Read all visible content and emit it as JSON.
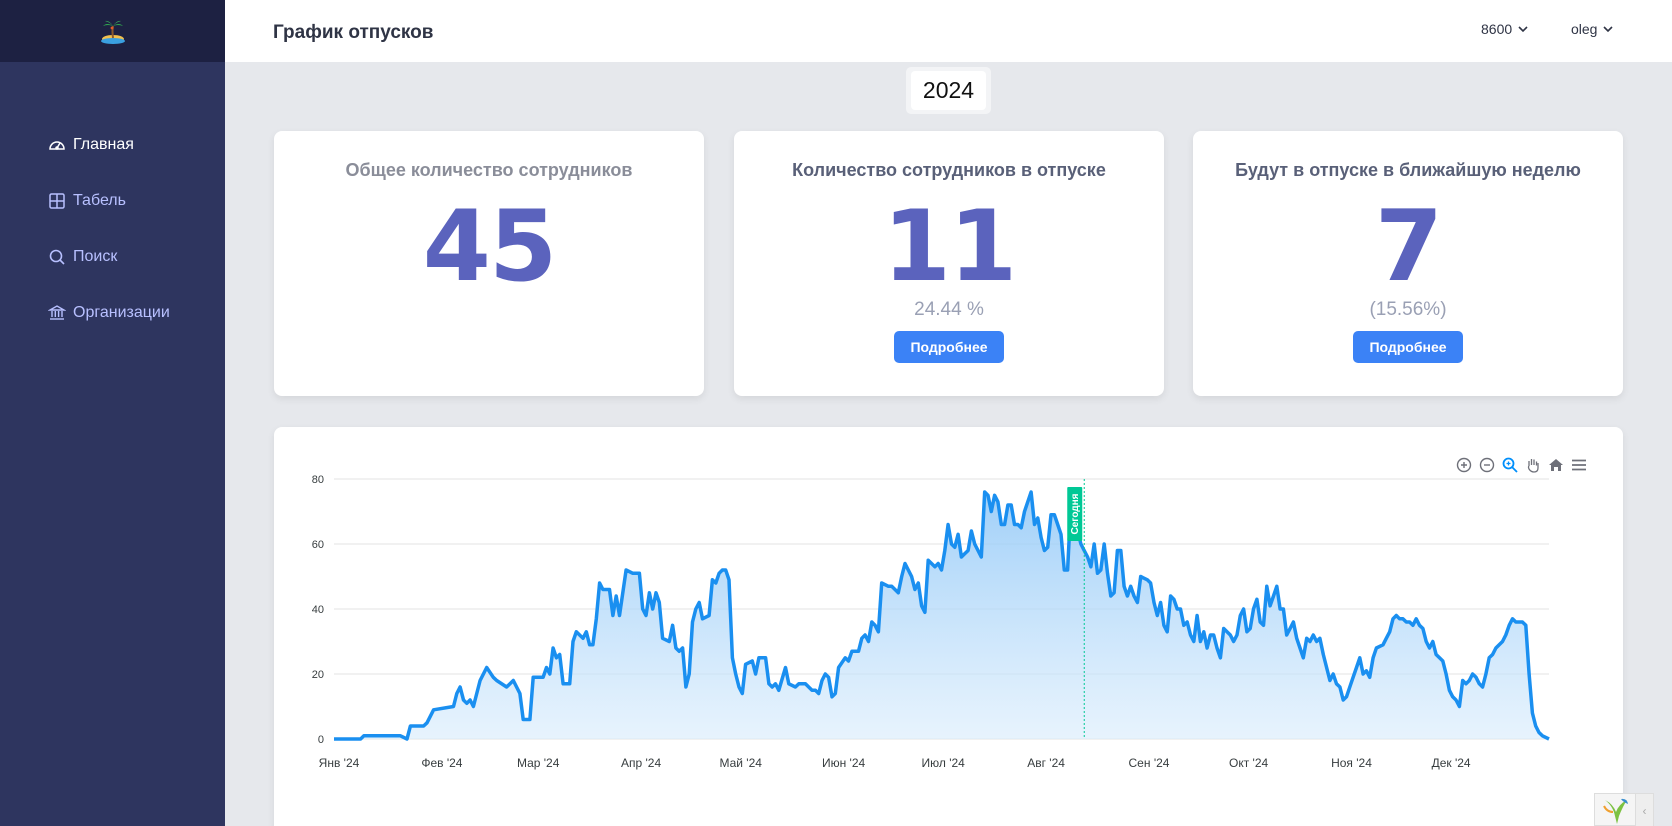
{
  "app": {
    "title": "График отпусков"
  },
  "sidebar": {
    "logo_icon": "palm-island-icon",
    "items": [
      {
        "label": "Главная",
        "icon": "dashboard-gauge-icon",
        "active": true
      },
      {
        "label": "Табель",
        "icon": "table-grid-icon",
        "active": false
      },
      {
        "label": "Поиск",
        "icon": "search-icon",
        "active": false
      },
      {
        "label": "Организации",
        "icon": "bank-building-icon",
        "active": false
      }
    ]
  },
  "header": {
    "org": "8600",
    "user": "oleg"
  },
  "year": "2024",
  "cards": [
    {
      "title": "Общее количество сотрудников",
      "value": "45"
    },
    {
      "title": "Количество сотрудников в отпуске",
      "value": "11",
      "sub": "24.44 %",
      "button": "Подробнее"
    },
    {
      "title": "Будут в отпуске в ближайшую неделю",
      "value": "7",
      "sub": "(15.56%)",
      "button": "Подробнее"
    }
  ],
  "chart_data": {
    "type": "area",
    "color": "#1a8ff0",
    "x_tick_labels": [
      "Янв '24",
      "Фев '24",
      "Мар '24",
      "Апр '24",
      "Май '24",
      "Июн '24",
      "Июл '24",
      "Авг '24",
      "Сен '24",
      "Окт '24",
      "Ноя '24",
      "Дек '24"
    ],
    "y_ticks": [
      0,
      20,
      40,
      60,
      80
    ],
    "ylim": [
      0,
      80
    ],
    "xlim_days": [
      0,
      366
    ],
    "annotation": {
      "label": "Сегодня",
      "day": 226,
      "color": "#00c896"
    },
    "points": [
      [
        0,
        0
      ],
      [
        8,
        0
      ],
      [
        9,
        1
      ],
      [
        20,
        1
      ],
      [
        22,
        0
      ],
      [
        23,
        4
      ],
      [
        27,
        4
      ],
      [
        28,
        5
      ],
      [
        30,
        9
      ],
      [
        36,
        10
      ],
      [
        37,
        14
      ],
      [
        38,
        16
      ],
      [
        39,
        12
      ],
      [
        40,
        11
      ],
      [
        41,
        12
      ],
      [
        42,
        10
      ],
      [
        44,
        18
      ],
      [
        46,
        22
      ],
      [
        48,
        19
      ],
      [
        49,
        18
      ],
      [
        52,
        16
      ],
      [
        54,
        18
      ],
      [
        56,
        14
      ],
      [
        57,
        6
      ],
      [
        59,
        6
      ],
      [
        60,
        19
      ],
      [
        63,
        19
      ],
      [
        64,
        22
      ],
      [
        65,
        20
      ],
      [
        66,
        28
      ],
      [
        67,
        25
      ],
      [
        68,
        26
      ],
      [
        69,
        17
      ],
      [
        71,
        17
      ],
      [
        72,
        30
      ],
      [
        73,
        33
      ],
      [
        75,
        31
      ],
      [
        76,
        33
      ],
      [
        77,
        29
      ],
      [
        78,
        29
      ],
      [
        79,
        37
      ],
      [
        80,
        48
      ],
      [
        81,
        46
      ],
      [
        83,
        46
      ],
      [
        84,
        38
      ],
      [
        85,
        44
      ],
      [
        86,
        38
      ],
      [
        88,
        52
      ],
      [
        90,
        51
      ],
      [
        92,
        51
      ],
      [
        93,
        40
      ],
      [
        94,
        38
      ],
      [
        95,
        45
      ],
      [
        96,
        40
      ],
      [
        97,
        45
      ],
      [
        98,
        42
      ],
      [
        99,
        31
      ],
      [
        101,
        30
      ],
      [
        102,
        35
      ],
      [
        103,
        28
      ],
      [
        104,
        27
      ],
      [
        105,
        28
      ],
      [
        106,
        16
      ],
      [
        107,
        20
      ],
      [
        108,
        36
      ],
      [
        109,
        40
      ],
      [
        110,
        42
      ],
      [
        111,
        37
      ],
      [
        113,
        38
      ],
      [
        114,
        49
      ],
      [
        115,
        48
      ],
      [
        116,
        51
      ],
      [
        117,
        52
      ],
      [
        118,
        52
      ],
      [
        119,
        49
      ],
      [
        120,
        25
      ],
      [
        121,
        20
      ],
      [
        122,
        16
      ],
      [
        123,
        14
      ],
      [
        124,
        23
      ],
      [
        126,
        24
      ],
      [
        127,
        20
      ],
      [
        128,
        25
      ],
      [
        130,
        25
      ],
      [
        131,
        17
      ],
      [
        132,
        16
      ],
      [
        133,
        17
      ],
      [
        134,
        15
      ],
      [
        136,
        22
      ],
      [
        137,
        17
      ],
      [
        139,
        16
      ],
      [
        140,
        17
      ],
      [
        142,
        17
      ],
      [
        144,
        15
      ],
      [
        145,
        15
      ],
      [
        146,
        14
      ],
      [
        147,
        18
      ],
      [
        148,
        20
      ],
      [
        149,
        19
      ],
      [
        150,
        13
      ],
      [
        151,
        14
      ],
      [
        152,
        22
      ],
      [
        154,
        25
      ],
      [
        155,
        24
      ],
      [
        156,
        27
      ],
      [
        158,
        27
      ],
      [
        159,
        31
      ],
      [
        160,
        32
      ],
      [
        161,
        30
      ],
      [
        162,
        36
      ],
      [
        163,
        35
      ],
      [
        164,
        33
      ],
      [
        165,
        48
      ],
      [
        167,
        47
      ],
      [
        168,
        47
      ],
      [
        169,
        46
      ],
      [
        170,
        45
      ],
      [
        171,
        50
      ],
      [
        172,
        54
      ],
      [
        174,
        50
      ],
      [
        175,
        46
      ],
      [
        176,
        48
      ],
      [
        177,
        41
      ],
      [
        178,
        39
      ],
      [
        179,
        55
      ],
      [
        181,
        53
      ],
      [
        182,
        54
      ],
      [
        183,
        52
      ],
      [
        184,
        58
      ],
      [
        185,
        66
      ],
      [
        186,
        60
      ],
      [
        187,
        59
      ],
      [
        188,
        63
      ],
      [
        189,
        56
      ],
      [
        190,
        57
      ],
      [
        191,
        58
      ],
      [
        192,
        64
      ],
      [
        193,
        60
      ],
      [
        194,
        58
      ],
      [
        195,
        56
      ],
      [
        196,
        76
      ],
      [
        197,
        75
      ],
      [
        198,
        70
      ],
      [
        199,
        75
      ],
      [
        200,
        73
      ],
      [
        201,
        66
      ],
      [
        202,
        66
      ],
      [
        203,
        72
      ],
      [
        204,
        72
      ],
      [
        205,
        66
      ],
      [
        206,
        66
      ],
      [
        207,
        65
      ],
      [
        208,
        70
      ],
      [
        210,
        76
      ],
      [
        211,
        66
      ],
      [
        212,
        68
      ],
      [
        213,
        62
      ],
      [
        214,
        58
      ],
      [
        215,
        59
      ],
      [
        216,
        69
      ],
      [
        217,
        69
      ],
      [
        218,
        66
      ],
      [
        219,
        63
      ],
      [
        220,
        52
      ],
      [
        221,
        52
      ],
      [
        222,
        73
      ],
      [
        223,
        72
      ],
      [
        224,
        64
      ],
      [
        225,
        60
      ],
      [
        226,
        58
      ],
      [
        227,
        56
      ],
      [
        228,
        53
      ],
      [
        229,
        60
      ],
      [
        230,
        51
      ],
      [
        231,
        52
      ],
      [
        232,
        60
      ],
      [
        233,
        51
      ],
      [
        234,
        44
      ],
      [
        235,
        45
      ],
      [
        236,
        58
      ],
      [
        237,
        58
      ],
      [
        238,
        47
      ],
      [
        239,
        44
      ],
      [
        240,
        47
      ],
      [
        241,
        44
      ],
      [
        242,
        42
      ],
      [
        243,
        50
      ],
      [
        245,
        49
      ],
      [
        246,
        48
      ],
      [
        247,
        42
      ],
      [
        248,
        38
      ],
      [
        249,
        42
      ],
      [
        250,
        35
      ],
      [
        251,
        33
      ],
      [
        252,
        44
      ],
      [
        253,
        43
      ],
      [
        254,
        40
      ],
      [
        255,
        40
      ],
      [
        256,
        35
      ],
      [
        257,
        36
      ],
      [
        258,
        32
      ],
      [
        259,
        30
      ],
      [
        260,
        38
      ],
      [
        261,
        30
      ],
      [
        262,
        33
      ],
      [
        263,
        28
      ],
      [
        264,
        32
      ],
      [
        265,
        32
      ],
      [
        266,
        28
      ],
      [
        267,
        25
      ],
      [
        268,
        34
      ],
      [
        270,
        32
      ],
      [
        271,
        30
      ],
      [
        272,
        32
      ],
      [
        273,
        38
      ],
      [
        274,
        40
      ],
      [
        275,
        33
      ],
      [
        276,
        34
      ],
      [
        277,
        40
      ],
      [
        278,
        43
      ],
      [
        279,
        36
      ],
      [
        280,
        35
      ],
      [
        281,
        47
      ],
      [
        282,
        41
      ],
      [
        283,
        44
      ],
      [
        284,
        47
      ],
      [
        285,
        40
      ],
      [
        286,
        40
      ],
      [
        287,
        32
      ],
      [
        288,
        34
      ],
      [
        289,
        36
      ],
      [
        290,
        31
      ],
      [
        291,
        28
      ],
      [
        292,
        25
      ],
      [
        293,
        31
      ],
      [
        294,
        30
      ],
      [
        295,
        32
      ],
      [
        296,
        30
      ],
      [
        297,
        31
      ],
      [
        298,
        26
      ],
      [
        299,
        22
      ],
      [
        300,
        18
      ],
      [
        301,
        20
      ],
      [
        302,
        17
      ],
      [
        303,
        16
      ],
      [
        304,
        12
      ],
      [
        305,
        13
      ],
      [
        306,
        16
      ],
      [
        307,
        19
      ],
      [
        308,
        22
      ],
      [
        309,
        25
      ],
      [
        310,
        20
      ],
      [
        311,
        21
      ],
      [
        312,
        19
      ],
      [
        313,
        25
      ],
      [
        314,
        28
      ],
      [
        316,
        29
      ],
      [
        317,
        31
      ],
      [
        318,
        33
      ],
      [
        319,
        37
      ],
      [
        320,
        38
      ],
      [
        321,
        37
      ],
      [
        322,
        37
      ],
      [
        323,
        36
      ],
      [
        324,
        36
      ],
      [
        325,
        35
      ],
      [
        326,
        37
      ],
      [
        327,
        35
      ],
      [
        328,
        34
      ],
      [
        329,
        30
      ],
      [
        330,
        28
      ],
      [
        331,
        30
      ],
      [
        332,
        26
      ],
      [
        333,
        25
      ],
      [
        334,
        24
      ],
      [
        335,
        20
      ],
      [
        336,
        15
      ],
      [
        337,
        13
      ],
      [
        338,
        12
      ],
      [
        339,
        10
      ],
      [
        340,
        18
      ],
      [
        341,
        17
      ],
      [
        342,
        18
      ],
      [
        343,
        20
      ],
      [
        344,
        19
      ],
      [
        345,
        17
      ],
      [
        346,
        16
      ],
      [
        347,
        20
      ],
      [
        348,
        25
      ],
      [
        349,
        26
      ],
      [
        350,
        28
      ],
      [
        352,
        30
      ],
      [
        353,
        32
      ],
      [
        354,
        35
      ],
      [
        355,
        37
      ],
      [
        356,
        36
      ],
      [
        357,
        36
      ],
      [
        358,
        36
      ],
      [
        359,
        35
      ],
      [
        360,
        20
      ],
      [
        361,
        8
      ],
      [
        362,
        4
      ],
      [
        363,
        2
      ],
      [
        364,
        1
      ],
      [
        366,
        0
      ]
    ]
  }
}
